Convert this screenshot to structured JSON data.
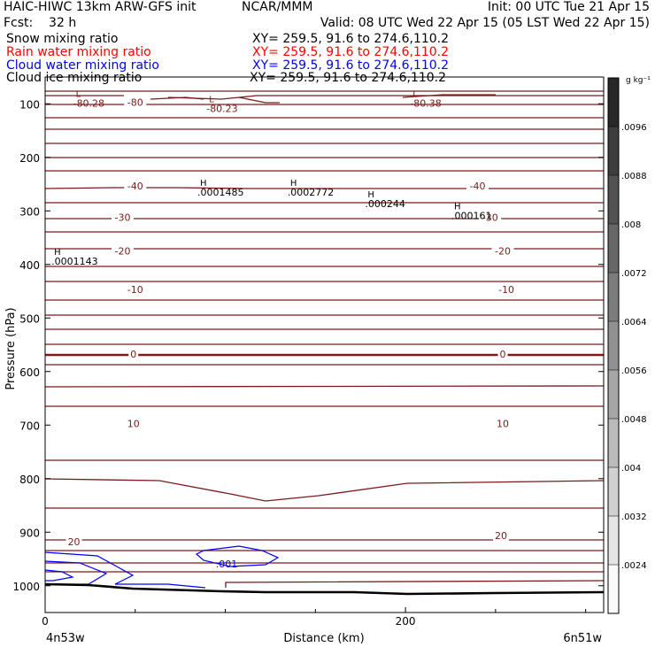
{
  "header": {
    "title": "HAIC-HIWC 13km ARW-GFS init",
    "org": "NCAR/MMM",
    "init": "Init: 00 UTC Tue 21 Apr 15",
    "fcst": "Fcst:    32 h",
    "valid": "Valid: 08 UTC Wed 22 Apr 15 (05 LST Wed 22 Apr 15)"
  },
  "fields": [
    {
      "name": "Snow mixing ratio",
      "xy": "XY= 259.5, 91.6 to 274.6,110.2",
      "color": "#000000"
    },
    {
      "name": "Rain water mixing ratio",
      "xy": "XY= 259.5, 91.6 to 274.6,110.2",
      "color": "#ff0000"
    },
    {
      "name": "Cloud water mixing ratio",
      "xy": "XY= 259.5, 91.6 to 274.6,110.2",
      "color": "#0000ff"
    },
    {
      "name": "Cloud ice mixing ratio",
      "xy": "XY= 259.5, 91.6 to 274.6,110.2",
      "color": "#000000"
    }
  ],
  "chart_data": {
    "type": "contour cross-section",
    "ylabel": "Pressure (hPa)",
    "xlabel": "Distance (km)",
    "y_ticks": [
      100,
      200,
      300,
      400,
      500,
      600,
      700,
      800,
      900,
      1000
    ],
    "x_ticks": [
      0,
      200
    ],
    "x_end_labels": [
      "4n53w",
      "6n51w"
    ],
    "ylim": [
      1050,
      50
    ],
    "xlim": [
      0,
      310
    ],
    "temperature_contour_labels": [
      {
        "value": "-80",
        "x": 50,
        "p": 97
      },
      {
        "value": "-40",
        "x": 50,
        "p": 253
      },
      {
        "value": "-40",
        "x": 240,
        "p": 253
      },
      {
        "value": "-30",
        "x": 43,
        "p": 312
      },
      {
        "value": "-30",
        "x": 247,
        "p": 312
      },
      {
        "value": "-20",
        "x": 43,
        "p": 375
      },
      {
        "value": "-20",
        "x": 254,
        "p": 375
      },
      {
        "value": "-10",
        "x": 50,
        "p": 447
      },
      {
        "value": "-10",
        "x": 256,
        "p": 447
      },
      {
        "value": "0",
        "x": 49,
        "p": 567
      },
      {
        "value": "0",
        "x": 254,
        "p": 567
      },
      {
        "value": "10",
        "x": 49,
        "p": 697
      },
      {
        "value": "10",
        "x": 254,
        "p": 697
      },
      {
        "value": "20",
        "x": 16,
        "p": 918
      },
      {
        "value": "20",
        "x": 253,
        "p": 906
      }
    ],
    "extrema": [
      {
        "type": "L",
        "value": "-80.28",
        "x": 17,
        "p": 87
      },
      {
        "type": "L",
        "value": "-80.23",
        "x": 91,
        "p": 97
      },
      {
        "type": "L",
        "value": "-80.38",
        "x": 204,
        "p": 87
      },
      {
        "type": "H",
        "value": ".0001485",
        "x": 86,
        "p": 253
      },
      {
        "type": "H",
        "value": ".0002772",
        "x": 136,
        "p": 253
      },
      {
        "type": "H",
        "value": ".000244",
        "x": 179,
        "p": 275
      },
      {
        "type": "H",
        "value": ".000161",
        "x": 227,
        "p": 297
      },
      {
        "type": "H",
        "value": ".0001143",
        "x": 5,
        "p": 382
      }
    ],
    "cloud_water_labels": [
      ".001"
    ],
    "colorbar": {
      "unit": "g kg⁻¹",
      "ticks": [
        ".0096",
        ".0088",
        ".008",
        ".0072",
        ".0064",
        ".0056",
        ".0048",
        ".004",
        ".0032",
        ".0024"
      ],
      "min": 0.0016,
      "max": 0.0104
    },
    "grid": false
  }
}
